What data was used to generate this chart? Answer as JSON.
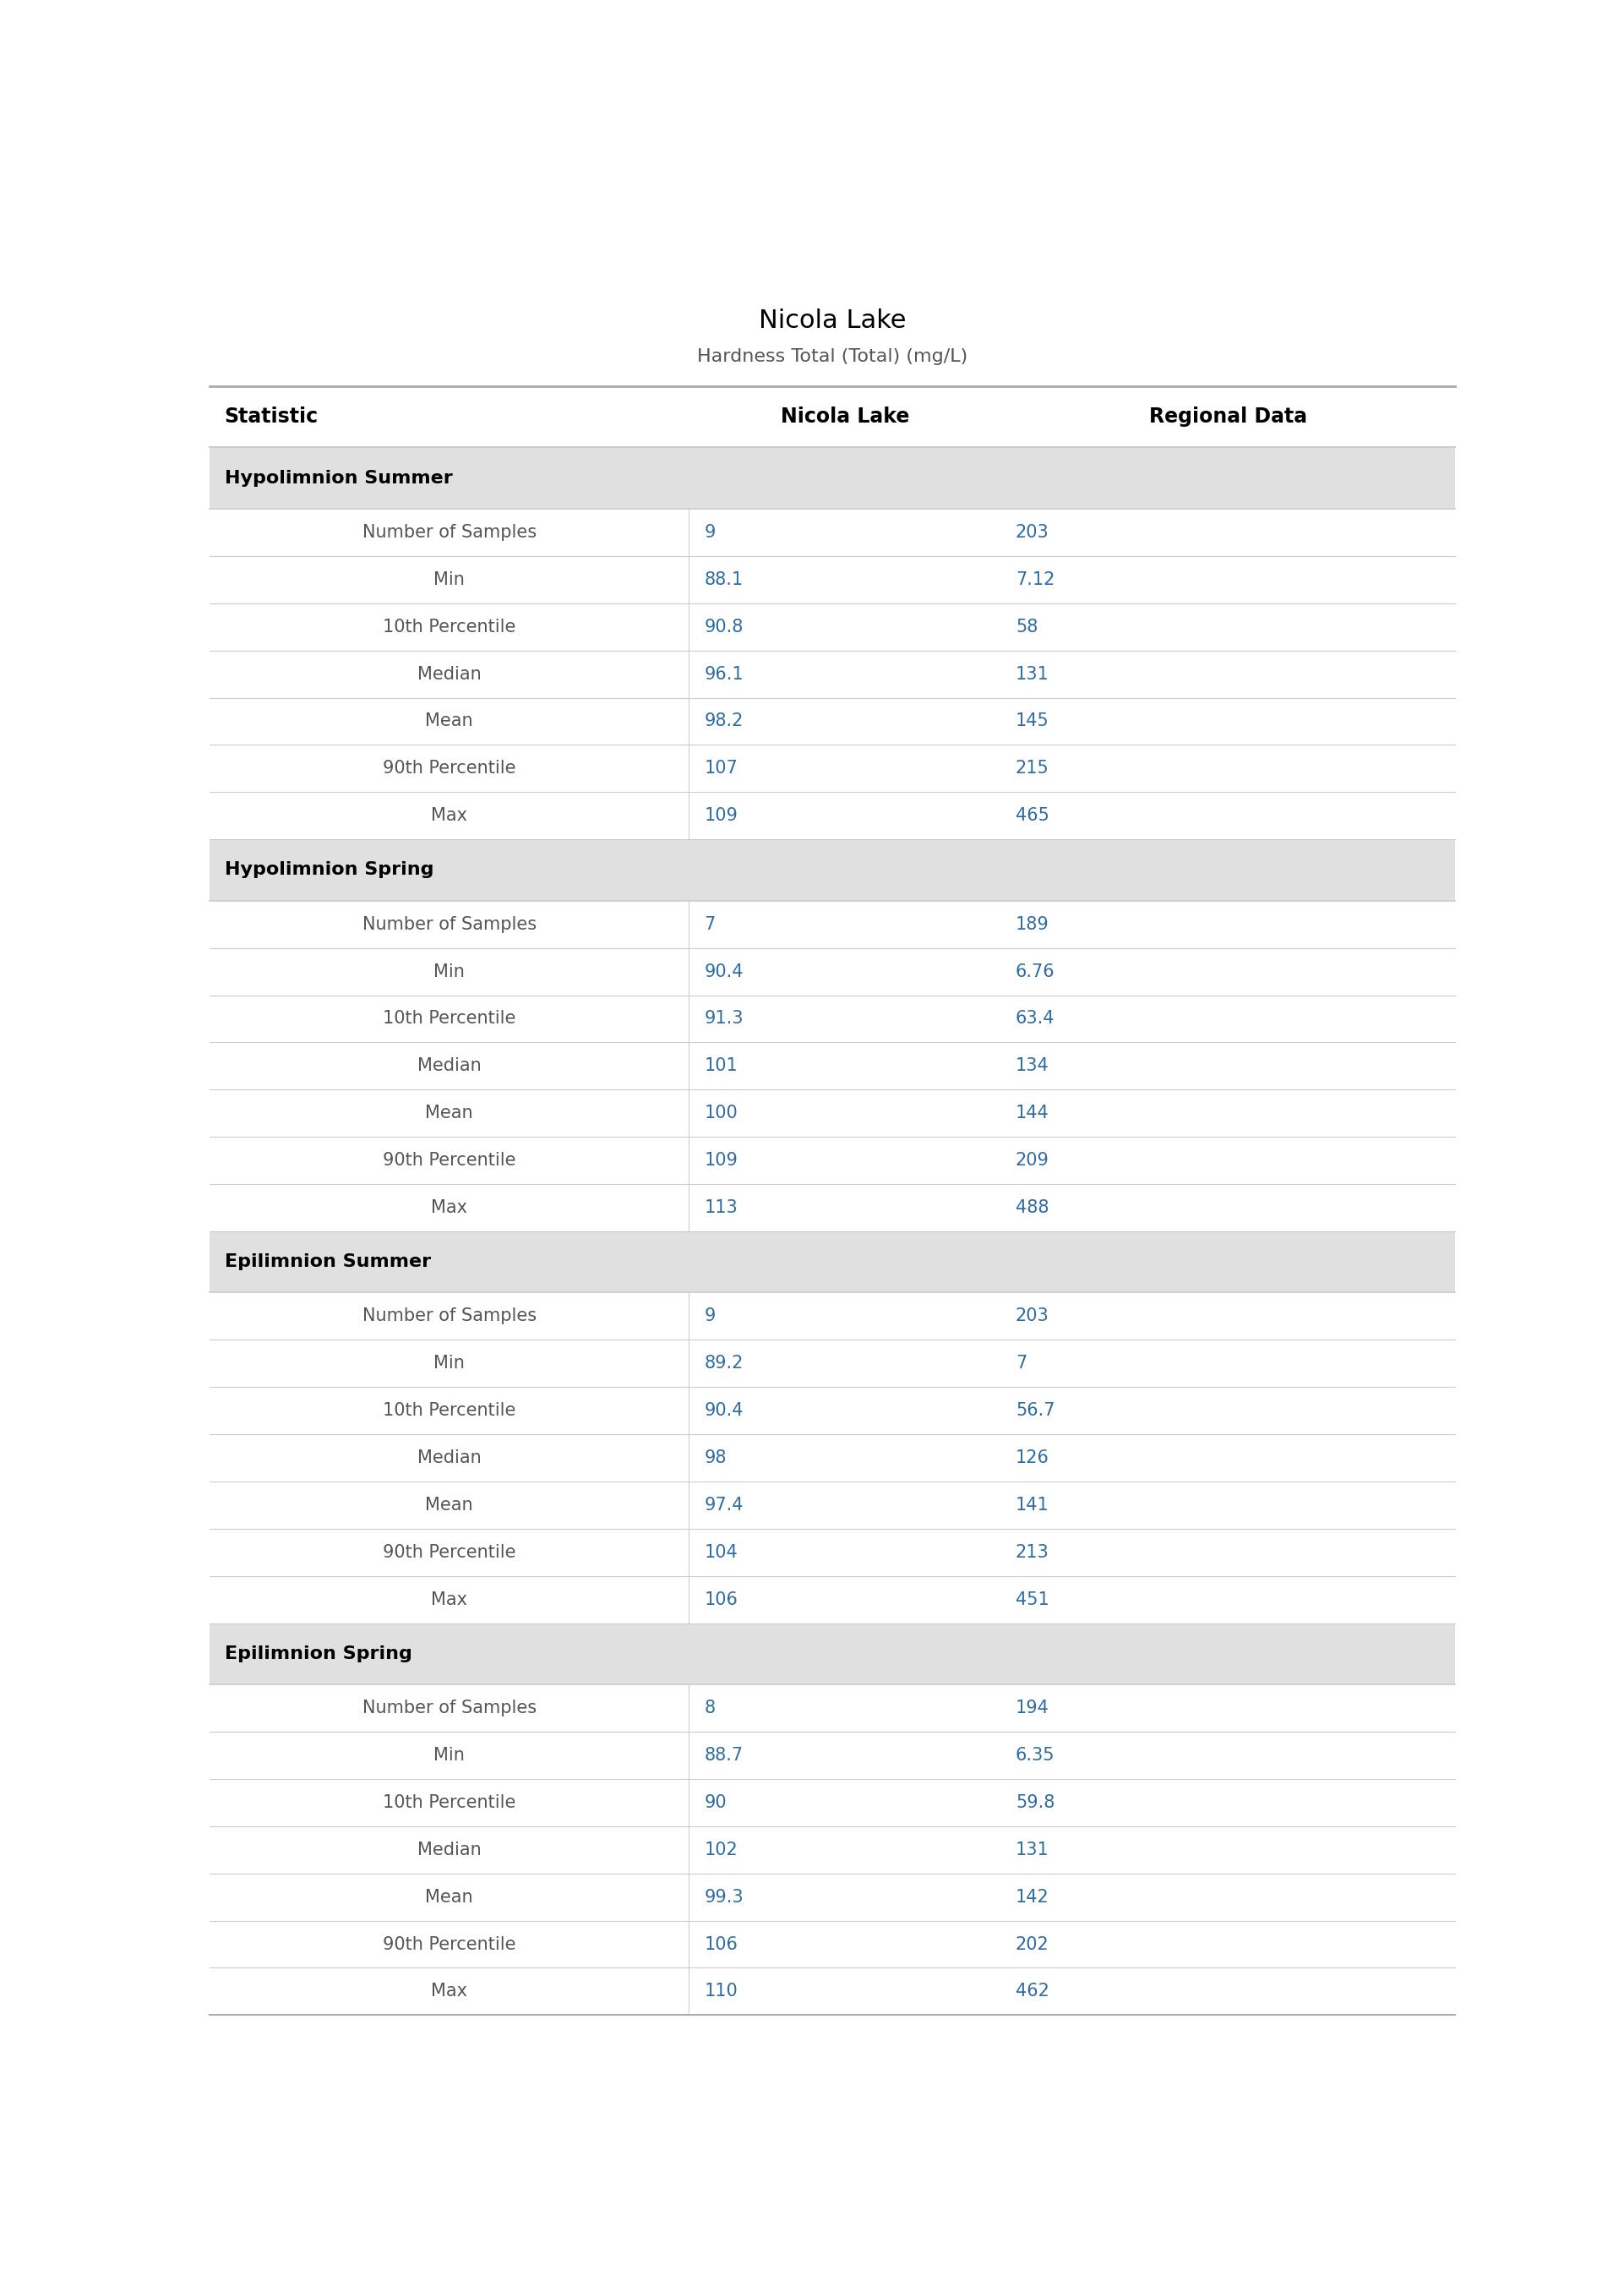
{
  "title": "Nicola Lake",
  "subtitle": "Hardness Total (Total) (mg/L)",
  "col_headers": [
    "Statistic",
    "Nicola Lake",
    "Regional Data"
  ],
  "sections": [
    {
      "name": "Hypolimnion Summer",
      "rows": [
        [
          "Number of Samples",
          "9",
          "203"
        ],
        [
          "Min",
          "88.1",
          "7.12"
        ],
        [
          "10th Percentile",
          "90.8",
          "58"
        ],
        [
          "Median",
          "96.1",
          "131"
        ],
        [
          "Mean",
          "98.2",
          "145"
        ],
        [
          "90th Percentile",
          "107",
          "215"
        ],
        [
          "Max",
          "109",
          "465"
        ]
      ]
    },
    {
      "name": "Hypolimnion Spring",
      "rows": [
        [
          "Number of Samples",
          "7",
          "189"
        ],
        [
          "Min",
          "90.4",
          "6.76"
        ],
        [
          "10th Percentile",
          "91.3",
          "63.4"
        ],
        [
          "Median",
          "101",
          "134"
        ],
        [
          "Mean",
          "100",
          "144"
        ],
        [
          "90th Percentile",
          "109",
          "209"
        ],
        [
          "Max",
          "113",
          "488"
        ]
      ]
    },
    {
      "name": "Epilimnion Summer",
      "rows": [
        [
          "Number of Samples",
          "9",
          "203"
        ],
        [
          "Min",
          "89.2",
          "7"
        ],
        [
          "10th Percentile",
          "90.4",
          "56.7"
        ],
        [
          "Median",
          "98",
          "126"
        ],
        [
          "Mean",
          "97.4",
          "141"
        ],
        [
          "90th Percentile",
          "104",
          "213"
        ],
        [
          "Max",
          "106",
          "451"
        ]
      ]
    },
    {
      "name": "Epilimnion Spring",
      "rows": [
        [
          "Number of Samples",
          "8",
          "194"
        ],
        [
          "Min",
          "88.7",
          "6.35"
        ],
        [
          "10th Percentile",
          "90",
          "59.8"
        ],
        [
          "Median",
          "102",
          "131"
        ],
        [
          "Mean",
          "99.3",
          "142"
        ],
        [
          "90th Percentile",
          "106",
          "202"
        ],
        [
          "Max",
          "110",
          "462"
        ]
      ]
    }
  ],
  "title_color": "#000000",
  "subtitle_color": "#555555",
  "header_text_color": "#000000",
  "section_header_bg": "#e0e0e0",
  "section_header_text_color": "#000000",
  "row_bg_white": "#ffffff",
  "data_text_color": "#2e6da4",
  "stat_text_color": "#555555",
  "col_header_bg": "#ffffff",
  "divider_color": "#cccccc",
  "top_border_color": "#aaaaaa",
  "bottom_border_color": "#aaaaaa",
  "title_fontsize": 22,
  "subtitle_fontsize": 16,
  "header_fontsize": 17,
  "section_fontsize": 16,
  "data_fontsize": 15
}
